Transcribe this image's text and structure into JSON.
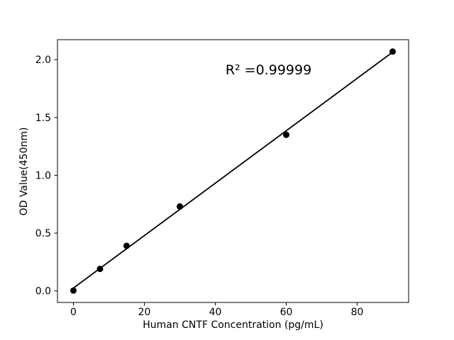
{
  "figure": {
    "background": "#ffffff"
  },
  "chart_data": {
    "type": "scatter",
    "title": "",
    "xlabel": "Human CNTF Concentration (pg/mL)",
    "ylabel": "OD Value(450nm)",
    "points": [
      {
        "x": 0,
        "y": 0.003
      },
      {
        "x": 7.5,
        "y": 0.19
      },
      {
        "x": 15,
        "y": 0.39
      },
      {
        "x": 30,
        "y": 0.73
      },
      {
        "x": 60,
        "y": 1.35
      },
      {
        "x": 90,
        "y": 2.07
      }
    ],
    "trendline": {
      "x1": 0,
      "y1": 0.025,
      "x2": 90,
      "y2": 2.065
    },
    "annotation": {
      "text": "R² =0.99999",
      "x": 55,
      "y": 1.91
    },
    "xlim": [
      -4.5,
      94.5
    ],
    "ylim": [
      -0.1,
      2.173
    ],
    "xticks": {
      "values": [
        0,
        20,
        40,
        60,
        80
      ],
      "labels": [
        "0",
        "20",
        "40",
        "60",
        "80"
      ]
    },
    "yticks": {
      "values": [
        0,
        0.5,
        1.0,
        1.5,
        2.0
      ],
      "labels": [
        "0.0",
        "0.5",
        "1.0",
        "1.5",
        "2.0"
      ]
    },
    "grid": false,
    "legend": null,
    "marker": {
      "shape": "circle",
      "radius_px": 4.5
    },
    "colors": {
      "marker": "#000000",
      "line": "#000000",
      "axis": "#000000",
      "text": "#000000",
      "background": "#ffffff"
    }
  }
}
